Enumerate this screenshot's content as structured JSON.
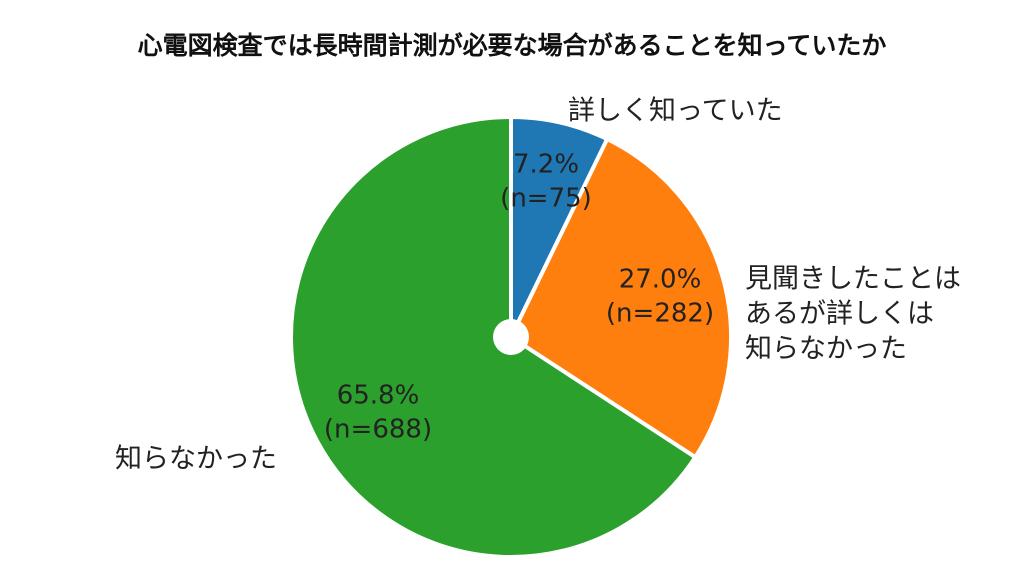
{
  "chart_data": {
    "type": "pie",
    "title": "心電図検査では長時間計測が必要な場合があることを知っていたか",
    "start_angle": "top",
    "direction": "clockwise",
    "slices": [
      {
        "label": "詳しく知っていた",
        "label_lines": [
          "詳しく知っていた"
        ],
        "percent": 7.2,
        "n": 75,
        "pct_text": "7.2%",
        "n_text": "(n=75)",
        "color": "#1f77b4"
      },
      {
        "label": "見聞きしたことはあるが詳しくは知らなかった",
        "label_lines": [
          "見聞きしたことは",
          "あるが詳しくは",
          "知らなかった"
        ],
        "percent": 27.0,
        "n": 282,
        "pct_text": "27.0%",
        "n_text": "(n=282)",
        "color": "#ff7f0e"
      },
      {
        "label": "知らなかった",
        "label_lines": [
          "知らなかった"
        ],
        "percent": 65.8,
        "n": 688,
        "pct_text": "65.8%",
        "n_text": "(n=688)",
        "color": "#2ca02c"
      }
    ]
  }
}
